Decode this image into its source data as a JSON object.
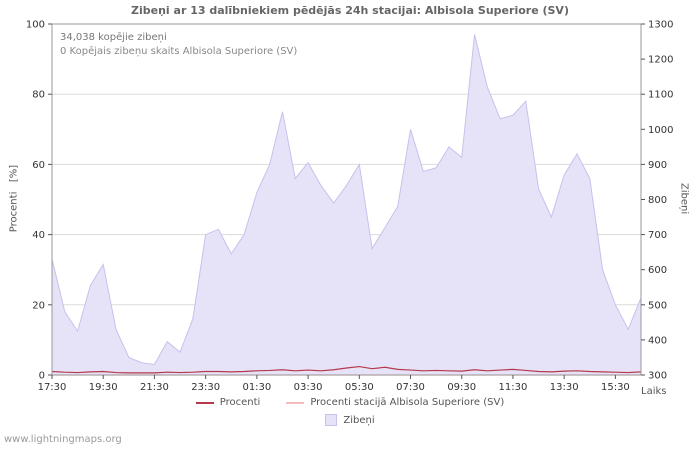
{
  "title": "Zibeņi ar 13 dalībniekiem pēdējās 24h stacijai: Albisola Superiore (SV)",
  "annotations": {
    "total": "34,038 kopējie zibeņi",
    "station_total": "0 Kopējais zibeņu skaits Albisola Superiore (SV)"
  },
  "axes": {
    "left_label": "Procenti   [%]",
    "right_label": "Zibeņi",
    "x_label": "Laiks"
  },
  "legend": {
    "procenti": "Procenti",
    "procenti_station": "Procenti stacijā Albisola Superiore (SV)",
    "zibeni": "Zibeņi"
  },
  "watermark": "www.lightningmaps.org",
  "colors": {
    "area_fill": "#e6e3f8",
    "area_stroke": "#c7c1ec",
    "procenti_line": "#b5394a",
    "station_line": "#f5bcc0",
    "grid": "#dcdcdc",
    "axis": "#999999",
    "tick": "#555555",
    "tick_text": "#333333"
  },
  "chart_data": {
    "type": "area",
    "title": "Zibeņi ar 13 dalībniekiem pēdējās 24h stacijai: Albisola Superiore (SV)",
    "xlabel": "Laiks",
    "ylabel_left": "Procenti [%]",
    "ylabel_right": "Zibeņi",
    "grid": "horizontal",
    "legend_position": "bottom",
    "x_start": "17:30",
    "x_step_minutes": 30,
    "x_ticks": [
      "17:30",
      "19:30",
      "21:30",
      "23:30",
      "01:30",
      "03:30",
      "05:30",
      "07:30",
      "09:30",
      "11:30",
      "13:30",
      "15:30"
    ],
    "x_tick_every": 4,
    "y_left_ticks": [
      0,
      20,
      40,
      60,
      80,
      100
    ],
    "y_left_range": [
      0,
      100
    ],
    "y_right_ticks": [
      300,
      400,
      500,
      600,
      700,
      800,
      900,
      1000,
      1100,
      1200,
      1300
    ],
    "y_right_range": [
      300,
      1300
    ],
    "series": [
      {
        "name": "Zibeņi",
        "type": "area",
        "axis": "right",
        "values": [
          630,
          480,
          425,
          555,
          615,
          430,
          350,
          335,
          330,
          395,
          365,
          460,
          700,
          715,
          645,
          700,
          820,
          900,
          1050,
          860,
          905,
          840,
          790,
          840,
          900,
          660,
          720,
          780,
          1000,
          880,
          890,
          950,
          920,
          1270,
          1120,
          1030,
          1040,
          1080,
          830,
          750,
          870,
          930,
          860,
          600,
          500,
          430,
          520
        ]
      },
      {
        "name": "Procenti",
        "type": "line",
        "axis": "left",
        "values": [
          1.0,
          0.8,
          0.7,
          0.9,
          1.0,
          0.7,
          0.6,
          0.6,
          0.6,
          0.8,
          0.7,
          0.8,
          1.0,
          1.0,
          0.9,
          1.0,
          1.2,
          1.3,
          1.5,
          1.2,
          1.4,
          1.2,
          1.5,
          2.0,
          2.4,
          1.8,
          2.2,
          1.6,
          1.4,
          1.2,
          1.3,
          1.2,
          1.1,
          1.5,
          1.2,
          1.4,
          1.6,
          1.3,
          1.0,
          0.9,
          1.1,
          1.2,
          1.0,
          0.9,
          0.8,
          0.7,
          0.9
        ]
      },
      {
        "name": "Procenti stacijā Albisola Superiore (SV)",
        "type": "line",
        "axis": "left",
        "values": [
          0,
          0,
          0,
          0,
          0,
          0,
          0,
          0,
          0,
          0,
          0,
          0,
          0,
          0,
          0,
          0,
          0,
          0,
          0,
          0,
          0,
          0,
          0,
          0,
          0,
          0,
          0,
          0,
          0,
          0,
          0,
          0,
          0,
          0,
          0,
          0,
          0,
          0,
          0,
          0,
          0,
          0,
          0,
          0,
          0,
          0,
          0
        ]
      }
    ]
  }
}
